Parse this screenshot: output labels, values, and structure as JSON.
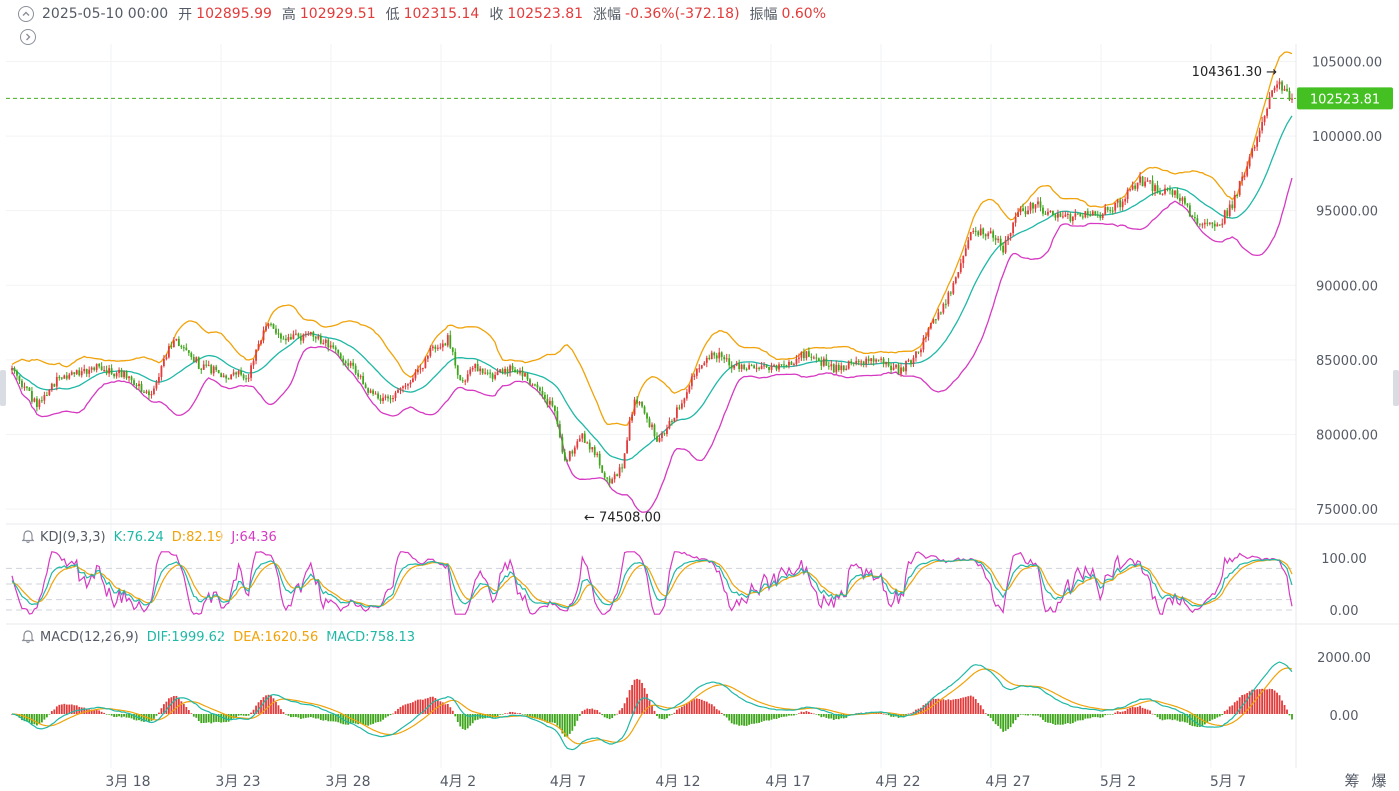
{
  "header": {
    "date": "2025-05-10 00:00",
    "open_label": "开",
    "open_value": "102895.99",
    "high_label": "高",
    "high_value": "102929.51",
    "low_label": "低",
    "low_value": "102315.14",
    "close_label": "收",
    "close_value": "102523.81",
    "change_label": "涨幅",
    "change_value": "-0.36%(-372.18)",
    "amplitude_label": "振幅",
    "amplitude_value": "0.60%"
  },
  "main_chart": {
    "price_ticks": [
      "105000.00",
      "100000.00",
      "95000.00",
      "90000.00",
      "85000.00",
      "80000.00",
      "75000.00"
    ],
    "current_price_label": "102523.81",
    "high_marker": "104361.30 →",
    "low_marker": "← 74508.00"
  },
  "kdj": {
    "name": "KDJ(9,3,3)",
    "k": "K:76.24",
    "d": "D:82.19",
    "j": "J:64.36",
    "ticks": [
      "100.00",
      "0.00"
    ]
  },
  "macd": {
    "name": "MACD(12,26,9)",
    "dif": "DIF:1999.62",
    "dea": "DEA:1620.56",
    "macd": "MACD:758.13",
    "ticks": [
      "2000.00",
      "0.00"
    ]
  },
  "x_axis": {
    "labels": [
      "3月 18",
      "3月 23",
      "3月 28",
      "4月 2",
      "4月 7",
      "4月 12",
      "4月 17",
      "4月 22",
      "4月 27",
      "5月 2",
      "5月 7"
    ]
  },
  "corner_labels": [
    "筹",
    "爆"
  ],
  "colors": {
    "up": "#e23b3b",
    "down": "#3fa51c",
    "boll_upper": "#f0a30a",
    "boll_mid": "#1fb8a6",
    "boll_lower": "#d63ac2",
    "price_tag_bg": "#44c022"
  },
  "icons": {
    "collapse": "chevron-up-icon",
    "expand": "chevron-right-icon",
    "alarm": "bell-icon"
  },
  "chart_data": {
    "type": "candlestick",
    "x_axis_dates": [
      "3月 18",
      "3月 23",
      "3月 28",
      "4月 2",
      "4月 7",
      "4月 12",
      "4月 17",
      "4月 22",
      "4月 27",
      "5月 2",
      "5月 7"
    ],
    "anchor_close_values": [
      [
        0,
        84300
      ],
      [
        10,
        82000
      ],
      [
        18,
        83700
      ],
      [
        28,
        84300
      ],
      [
        35,
        84500
      ],
      [
        45,
        84000
      ],
      [
        55,
        82500
      ],
      [
        65,
        86500
      ],
      [
        75,
        84700
      ],
      [
        85,
        84000
      ],
      [
        95,
        84000
      ],
      [
        102,
        87500
      ],
      [
        110,
        86300
      ],
      [
        120,
        86700
      ],
      [
        128,
        86000
      ],
      [
        135,
        84800
      ],
      [
        145,
        82500
      ],
      [
        152,
        82200
      ],
      [
        160,
        83500
      ],
      [
        168,
        85500
      ],
      [
        175,
        86400
      ],
      [
        180,
        83500
      ],
      [
        186,
        84500
      ],
      [
        192,
        83800
      ],
      [
        198,
        84500
      ],
      [
        205,
        84000
      ],
      [
        212,
        83000
      ],
      [
        218,
        81500
      ],
      [
        222,
        78000
      ],
      [
        228,
        80000
      ],
      [
        235,
        78500
      ],
      [
        240,
        76500
      ],
      [
        245,
        78000
      ],
      [
        250,
        82500
      ],
      [
        255,
        81000
      ],
      [
        260,
        79500
      ],
      [
        268,
        82000
      ],
      [
        275,
        84500
      ],
      [
        282,
        85500
      ],
      [
        290,
        84500
      ],
      [
        300,
        84300
      ],
      [
        310,
        84700
      ],
      [
        320,
        85500
      ],
      [
        330,
        84300
      ],
      [
        340,
        85000
      ],
      [
        350,
        84800
      ],
      [
        356,
        84300
      ],
      [
        362,
        85000
      ],
      [
        370,
        87500
      ],
      [
        378,
        90000
      ],
      [
        385,
        93500
      ],
      [
        392,
        93500
      ],
      [
        398,
        92500
      ],
      [
        405,
        95000
      ],
      [
        412,
        95300
      ],
      [
        420,
        94500
      ],
      [
        428,
        94700
      ],
      [
        436,
        94600
      ],
      [
        445,
        95500
      ],
      [
        452,
        97000
      ],
      [
        460,
        96500
      ],
      [
        468,
        96000
      ],
      [
        476,
        94300
      ],
      [
        484,
        93900
      ],
      [
        490,
        95500
      ],
      [
        496,
        97800
      ],
      [
        502,
        101300
      ],
      [
        508,
        103500
      ],
      [
        514,
        102524
      ]
    ],
    "low_annotation": "74508.00",
    "high_annotation": "104361.30",
    "last_close": 102523.81,
    "y_range": [
      74000,
      105300
    ],
    "overlay": "BOLL (upper / mid / lower)",
    "kdj": {
      "k": 76.24,
      "d": 82.19,
      "j": 64.36,
      "y_range": [
        0,
        100
      ]
    },
    "macd": {
      "dif": 1999.62,
      "dea": 1620.56,
      "macd": 758.13
    }
  }
}
